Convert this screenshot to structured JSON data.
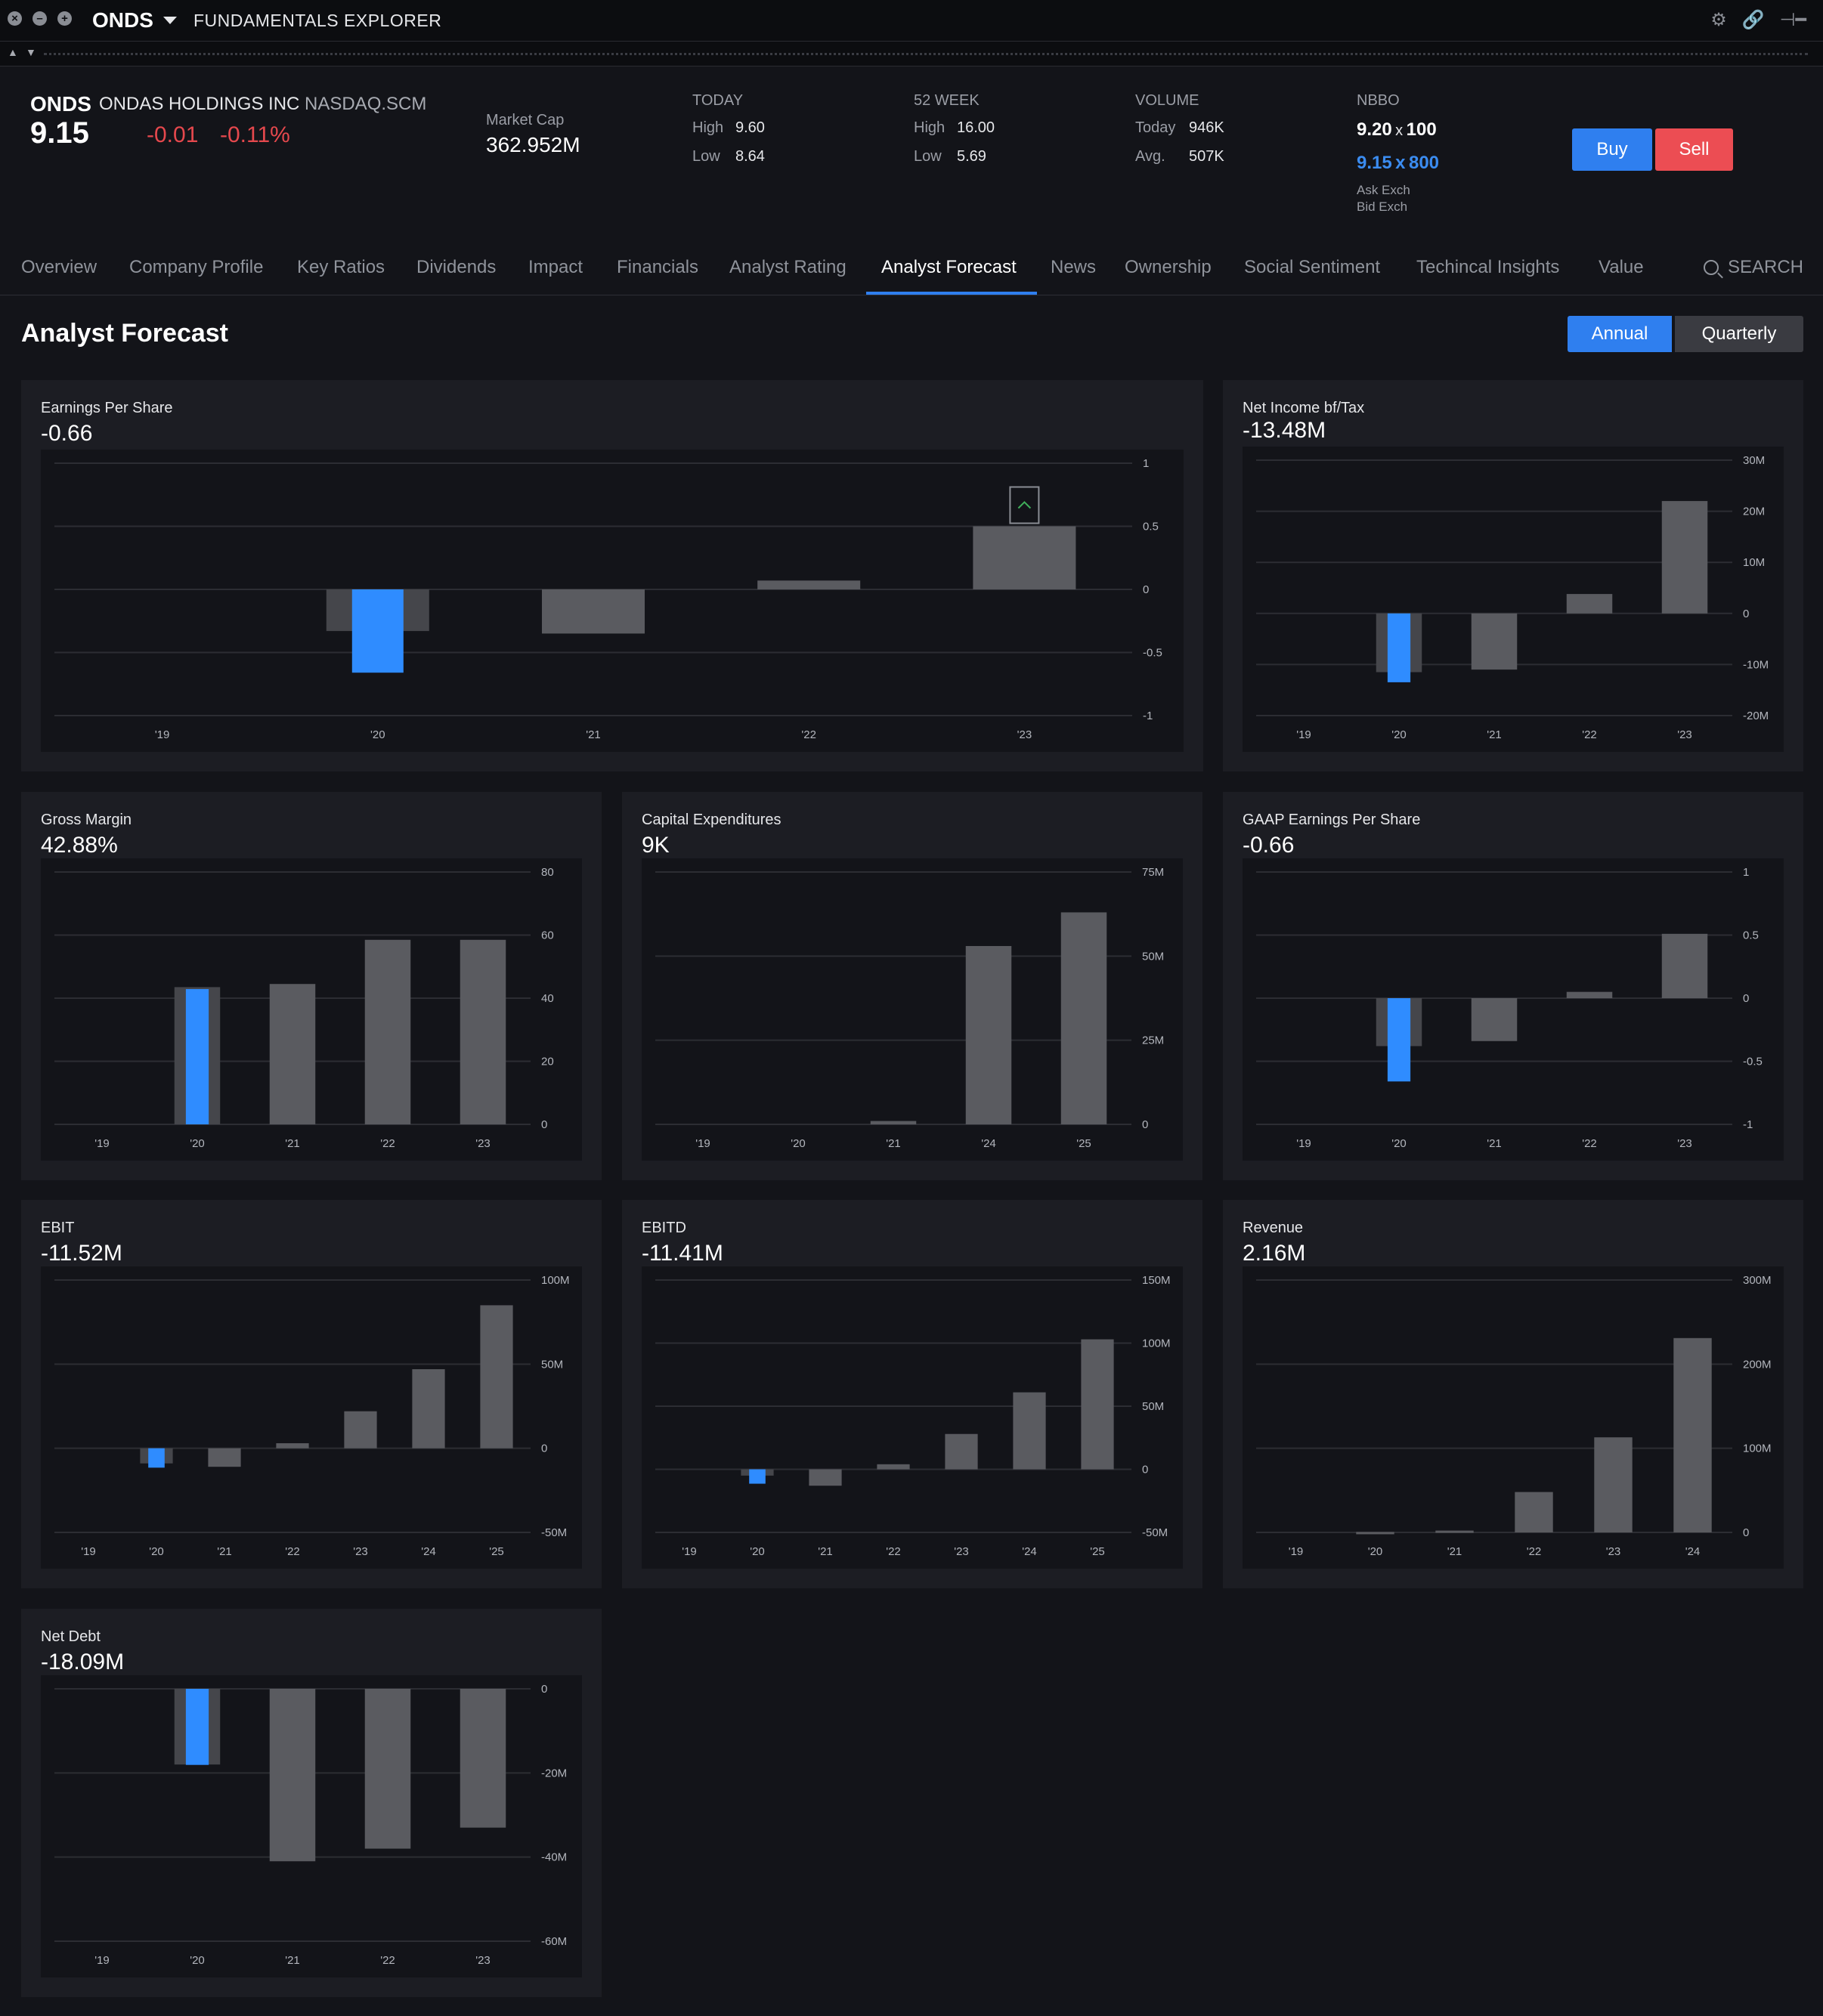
{
  "titlebar": {
    "ticker": "ONDS",
    "app_title": "FUNDAMENTALS EXPLORER",
    "icons": [
      "close-icon",
      "minimize-icon",
      "maximize-icon",
      "settings-icon",
      "link-icon",
      "pin-icon"
    ]
  },
  "quote": {
    "symbol": "ONDS",
    "company": "ONDAS HOLDINGS INC",
    "exchange": "NASDAQ.SCM",
    "price": "9.15",
    "change": "-0.01",
    "change_pct": "-0.11%",
    "market_cap_label": "Market Cap",
    "market_cap": "362.952M",
    "today": {
      "label": "TODAY",
      "high_label": "High",
      "high": "9.60",
      "low_label": "Low",
      "low": "8.64"
    },
    "week52": {
      "label": "52 WEEK",
      "high_label": "High",
      "high": "16.00",
      "low_label": "Low",
      "low": "5.69"
    },
    "volume": {
      "label": "VOLUME",
      "today_label": "Today",
      "today": "946K",
      "avg_label": "Avg.",
      "avg": "507K"
    },
    "nbbo": {
      "label": "NBBO",
      "ask_price": "9.20",
      "ask_size": "100",
      "bid_price": "9.15",
      "bid_size": "800",
      "x": "x",
      "ask_exch": "Ask Exch",
      "bid_exch": "Bid Exch"
    },
    "buy_label": "Buy",
    "sell_label": "Sell",
    "colors": {
      "down": "#e5484d",
      "buy": "#2f7fef",
      "sell": "#ec4d53",
      "bid": "#3b8cf0"
    }
  },
  "tabs": [
    "Overview",
    "Company Profile",
    "Key Ratios",
    "Dividends",
    "Impact",
    "Financials",
    "Analyst Rating",
    "Analyst Forecast",
    "News",
    "Ownership",
    "Social Sentiment",
    "Techincal Insights",
    "Value"
  ],
  "active_tab": "Analyst Forecast",
  "search_label": "SEARCH",
  "page_title": "Analyst Forecast",
  "period_toggle": {
    "annual": "Annual",
    "quarterly": "Quarterly",
    "selected": "Annual"
  },
  "chart_colors": {
    "highlight": "#2f8cff",
    "bar": "#5a5b60",
    "shadow": "#45464b",
    "grid": "#2c2d33",
    "up_marker": "#3fae5a"
  },
  "chart_data": [
    {
      "id": "eps",
      "type": "bar",
      "title": "Earnings Per Share",
      "value": "-0.66",
      "categories": [
        "'19",
        "'20",
        "'21",
        "'22",
        "'23"
      ],
      "values": [
        null,
        -0.66,
        -0.35,
        0.07,
        0.5
      ],
      "estimate_range": [
        null,
        [
          -0.33,
          0
        ],
        null,
        null,
        null
      ],
      "highlight_index": 1,
      "ylim": [
        -1,
        1
      ],
      "yticks": [
        -1,
        -0.5,
        0,
        0.5,
        1
      ],
      "ytick_labels": [
        "-1",
        "-0.5",
        "0",
        "0.5",
        "1"
      ],
      "marker": {
        "index": 4,
        "icon": "chevron-up-icon"
      }
    },
    {
      "id": "netincome",
      "type": "bar",
      "title": "Net Income bf/Tax",
      "value": "-13.48M",
      "categories": [
        "'19",
        "'20",
        "'21",
        "'22",
        "'23"
      ],
      "values": [
        null,
        -13.48,
        -11,
        3.8,
        22
      ],
      "estimate_range": [
        null,
        [
          -11.5,
          0
        ],
        null,
        null,
        null
      ],
      "highlight_index": 1,
      "ylim": [
        -20,
        30
      ],
      "yticks": [
        -20,
        -10,
        0,
        10,
        20,
        30
      ],
      "ytick_labels": [
        "-20M",
        "-10M",
        "0",
        "10M",
        "20M",
        "30M"
      ]
    },
    {
      "id": "grossmargin",
      "type": "bar",
      "title": "Gross Margin",
      "value": "42.88%",
      "categories": [
        "'19",
        "'20",
        "'21",
        "'22",
        "'23"
      ],
      "values": [
        null,
        42.88,
        44.5,
        58.5,
        58.5
      ],
      "estimate_range": [
        null,
        [
          0,
          43.5
        ],
        null,
        null,
        null
      ],
      "highlight_index": 1,
      "ylim": [
        0,
        80
      ],
      "yticks": [
        0,
        20,
        40,
        60,
        80
      ],
      "ytick_labels": [
        "0",
        "20",
        "40",
        "60",
        "80"
      ]
    },
    {
      "id": "capex",
      "type": "bar",
      "title": "Capital Expenditures",
      "value": "9K",
      "categories": [
        "'19",
        "'20",
        "'21",
        "'24",
        "'25"
      ],
      "values": [
        null,
        null,
        1,
        53,
        63
      ],
      "highlight_index": null,
      "ylim": [
        0,
        75
      ],
      "yticks": [
        0,
        25,
        50,
        75
      ],
      "ytick_labels": [
        "0",
        "25M",
        "50M",
        "75M"
      ]
    },
    {
      "id": "gaapeps",
      "type": "bar",
      "title": "GAAP Earnings Per Share",
      "value": "-0.66",
      "categories": [
        "'19",
        "'20",
        "'21",
        "'22",
        "'23"
      ],
      "values": [
        null,
        -0.66,
        -0.34,
        0.05,
        0.51
      ],
      "estimate_range": [
        null,
        [
          -0.38,
          0
        ],
        null,
        null,
        null
      ],
      "highlight_index": 1,
      "ylim": [
        -1,
        1
      ],
      "yticks": [
        -1,
        -0.5,
        0,
        0.5,
        1
      ],
      "ytick_labels": [
        "-1",
        "-0.5",
        "0",
        "0.5",
        "1"
      ]
    },
    {
      "id": "ebit",
      "type": "bar",
      "title": "EBIT",
      "value": "-11.52M",
      "categories": [
        "'19",
        "'20",
        "'21",
        "'22",
        "'23",
        "'24",
        "'25"
      ],
      "values": [
        null,
        -11.52,
        -11,
        3,
        22,
        47,
        85
      ],
      "estimate_range": [
        null,
        [
          -9,
          0
        ],
        null,
        null,
        null,
        null,
        null
      ],
      "highlight_index": 1,
      "ylim": [
        -50,
        100
      ],
      "yticks": [
        -50,
        0,
        50,
        100
      ],
      "ytick_labels": [
        "-50M",
        "0",
        "50M",
        "100M"
      ]
    },
    {
      "id": "ebitd",
      "type": "bar",
      "title": "EBITD",
      "value": "-11.41M",
      "categories": [
        "'19",
        "'20",
        "'21",
        "'22",
        "'23",
        "'24",
        "'25"
      ],
      "values": [
        null,
        -11.41,
        -13,
        4,
        28,
        61,
        103
      ],
      "estimate_range": [
        null,
        [
          -5,
          0
        ],
        null,
        null,
        null,
        null,
        null
      ],
      "highlight_index": 1,
      "ylim": [
        -50,
        150
      ],
      "yticks": [
        -50,
        0,
        50,
        100,
        150
      ],
      "ytick_labels": [
        "-50M",
        "0",
        "50M",
        "100M",
        "150M"
      ]
    },
    {
      "id": "revenue",
      "type": "bar",
      "title": "Revenue",
      "value": "2.16M",
      "categories": [
        "'19",
        "'20",
        "'21",
        "'22",
        "'23",
        "'24"
      ],
      "values": [
        null,
        0.5,
        2.16,
        48,
        113,
        231
      ],
      "highlight_index": null,
      "ylim": [
        0,
        300
      ],
      "yticks": [
        0,
        100,
        200,
        300
      ],
      "ytick_labels": [
        "0",
        "100M",
        "200M",
        "300M"
      ]
    },
    {
      "id": "netdebt",
      "type": "bar",
      "title": "Net Debt",
      "value": "-18.09M",
      "categories": [
        "'19",
        "'20",
        "'21",
        "'22",
        "'23"
      ],
      "values": [
        null,
        -18.09,
        -41,
        -38,
        -33
      ],
      "estimate_range": [
        null,
        [
          -18,
          0
        ],
        null,
        null,
        null
      ],
      "highlight_index": 1,
      "ylim": [
        -60,
        0
      ],
      "yticks": [
        -60,
        -40,
        -20,
        0
      ],
      "ytick_labels": [
        "-60M",
        "-40M",
        "-20M",
        "0"
      ]
    }
  ]
}
